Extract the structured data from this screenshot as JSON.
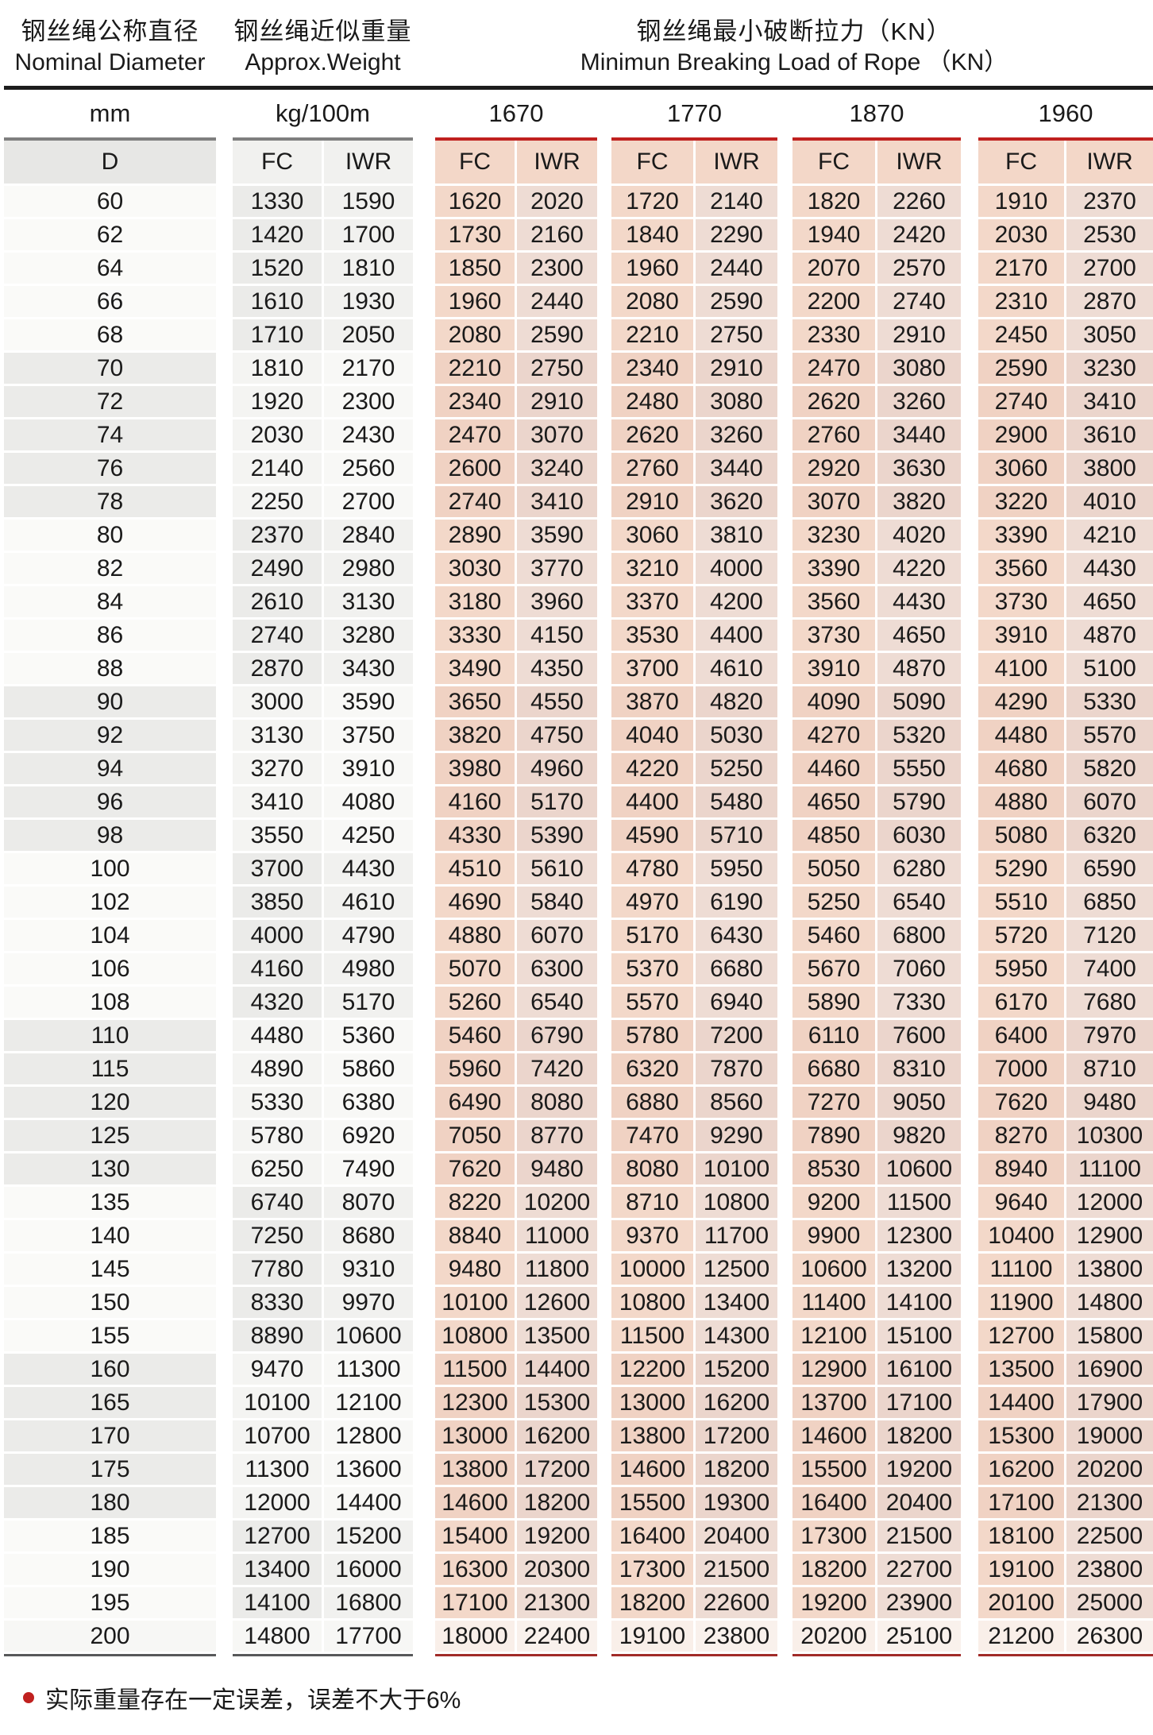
{
  "header": {
    "diameter_zh": "钢丝绳公称直径",
    "diameter_en": "Nominal Diameter",
    "weight_zh": "钢丝绳近似重量",
    "weight_en": "Approx.Weight",
    "load_zh": "钢丝绳最小破断拉力（KN）",
    "load_en": "Minimun Breaking Load of Rope （KN）"
  },
  "units": {
    "diameter": "mm",
    "weight": "kg/100m",
    "grades": [
      "1670",
      "1770",
      "1870",
      "1960"
    ]
  },
  "labels": {
    "diameter": "D",
    "fc": "FC",
    "iwr": "IWR"
  },
  "colors": {
    "accent_red": "#c0211f",
    "rule_dark_red": "#a12b28",
    "rule_gray": "#7f7f7f",
    "rule_dark": "#58595a",
    "rule_black": "#1d1d1d",
    "load_cell_pink": "#f3d8c9",
    "weight_cell_gray": "#ebebe9"
  },
  "footnote": "实际重量存在一定误差，误差不大于6%",
  "rows": [
    {
      "d": "60",
      "v": [
        "1330",
        "1590",
        "1620",
        "2020",
        "1720",
        "2140",
        "1820",
        "2260",
        "1910",
        "2370"
      ]
    },
    {
      "d": "62",
      "v": [
        "1420",
        "1700",
        "1730",
        "2160",
        "1840",
        "2290",
        "1940",
        "2420",
        "2030",
        "2530"
      ]
    },
    {
      "d": "64",
      "v": [
        "1520",
        "1810",
        "1850",
        "2300",
        "1960",
        "2440",
        "2070",
        "2570",
        "2170",
        "2700"
      ]
    },
    {
      "d": "66",
      "v": [
        "1610",
        "1930",
        "1960",
        "2440",
        "2080",
        "2590",
        "2200",
        "2740",
        "2310",
        "2870"
      ]
    },
    {
      "d": "68",
      "v": [
        "1710",
        "2050",
        "2080",
        "2590",
        "2210",
        "2750",
        "2330",
        "2910",
        "2450",
        "3050"
      ]
    },
    {
      "d": "70",
      "v": [
        "1810",
        "2170",
        "2210",
        "2750",
        "2340",
        "2910",
        "2470",
        "3080",
        "2590",
        "3230"
      ]
    },
    {
      "d": "72",
      "v": [
        "1920",
        "2300",
        "2340",
        "2910",
        "2480",
        "3080",
        "2620",
        "3260",
        "2740",
        "3410"
      ]
    },
    {
      "d": "74",
      "v": [
        "2030",
        "2430",
        "2470",
        "3070",
        "2620",
        "3260",
        "2760",
        "3440",
        "2900",
        "3610"
      ]
    },
    {
      "d": "76",
      "v": [
        "2140",
        "2560",
        "2600",
        "3240",
        "2760",
        "3440",
        "2920",
        "3630",
        "3060",
        "3800"
      ]
    },
    {
      "d": "78",
      "v": [
        "2250",
        "2700",
        "2740",
        "3410",
        "2910",
        "3620",
        "3070",
        "3820",
        "3220",
        "4010"
      ]
    },
    {
      "d": "80",
      "v": [
        "2370",
        "2840",
        "2890",
        "3590",
        "3060",
        "3810",
        "3230",
        "4020",
        "3390",
        "4210"
      ]
    },
    {
      "d": "82",
      "v": [
        "2490",
        "2980",
        "3030",
        "3770",
        "3210",
        "4000",
        "3390",
        "4220",
        "3560",
        "4430"
      ]
    },
    {
      "d": "84",
      "v": [
        "2610",
        "3130",
        "3180",
        "3960",
        "3370",
        "4200",
        "3560",
        "4430",
        "3730",
        "4650"
      ]
    },
    {
      "d": "86",
      "v": [
        "2740",
        "3280",
        "3330",
        "4150",
        "3530",
        "4400",
        "3730",
        "4650",
        "3910",
        "4870"
      ]
    },
    {
      "d": "88",
      "v": [
        "2870",
        "3430",
        "3490",
        "4350",
        "3700",
        "4610",
        "3910",
        "4870",
        "4100",
        "5100"
      ]
    },
    {
      "d": "90",
      "v": [
        "3000",
        "3590",
        "3650",
        "4550",
        "3870",
        "4820",
        "4090",
        "5090",
        "4290",
        "5330"
      ]
    },
    {
      "d": "92",
      "v": [
        "3130",
        "3750",
        "3820",
        "4750",
        "4040",
        "5030",
        "4270",
        "5320",
        "4480",
        "5570"
      ]
    },
    {
      "d": "94",
      "v": [
        "3270",
        "3910",
        "3980",
        "4960",
        "4220",
        "5250",
        "4460",
        "5550",
        "4680",
        "5820"
      ]
    },
    {
      "d": "96",
      "v": [
        "3410",
        "4080",
        "4160",
        "5170",
        "4400",
        "5480",
        "4650",
        "5790",
        "4880",
        "6070"
      ]
    },
    {
      "d": "98",
      "v": [
        "3550",
        "4250",
        "4330",
        "5390",
        "4590",
        "5710",
        "4850",
        "6030",
        "5080",
        "6320"
      ]
    },
    {
      "d": "100",
      "v": [
        "3700",
        "4430",
        "4510",
        "5610",
        "4780",
        "5950",
        "5050",
        "6280",
        "5290",
        "6590"
      ]
    },
    {
      "d": "102",
      "v": [
        "3850",
        "4610",
        "4690",
        "5840",
        "4970",
        "6190",
        "5250",
        "6540",
        "5510",
        "6850"
      ]
    },
    {
      "d": "104",
      "v": [
        "4000",
        "4790",
        "4880",
        "6070",
        "5170",
        "6430",
        "5460",
        "6800",
        "5720",
        "7120"
      ]
    },
    {
      "d": "106",
      "v": [
        "4160",
        "4980",
        "5070",
        "6300",
        "5370",
        "6680",
        "5670",
        "7060",
        "5950",
        "7400"
      ]
    },
    {
      "d": "108",
      "v": [
        "4320",
        "5170",
        "5260",
        "6540",
        "5570",
        "6940",
        "5890",
        "7330",
        "6170",
        "7680"
      ]
    },
    {
      "d": "110",
      "v": [
        "4480",
        "5360",
        "5460",
        "6790",
        "5780",
        "7200",
        "6110",
        "7600",
        "6400",
        "7970"
      ]
    },
    {
      "d": "115",
      "v": [
        "4890",
        "5860",
        "5960",
        "7420",
        "6320",
        "7870",
        "6680",
        "8310",
        "7000",
        "8710"
      ]
    },
    {
      "d": "120",
      "v": [
        "5330",
        "6380",
        "6490",
        "8080",
        "6880",
        "8560",
        "7270",
        "9050",
        "7620",
        "9480"
      ]
    },
    {
      "d": "125",
      "v": [
        "5780",
        "6920",
        "7050",
        "8770",
        "7470",
        "9290",
        "7890",
        "9820",
        "8270",
        "10300"
      ]
    },
    {
      "d": "130",
      "v": [
        "6250",
        "7490",
        "7620",
        "9480",
        "8080",
        "10100",
        "8530",
        "10600",
        "8940",
        "11100"
      ]
    },
    {
      "d": "135",
      "v": [
        "6740",
        "8070",
        "8220",
        "10200",
        "8710",
        "10800",
        "9200",
        "11500",
        "9640",
        "12000"
      ]
    },
    {
      "d": "140",
      "v": [
        "7250",
        "8680",
        "8840",
        "11000",
        "9370",
        "11700",
        "9900",
        "12300",
        "10400",
        "12900"
      ]
    },
    {
      "d": "145",
      "v": [
        "7780",
        "9310",
        "9480",
        "11800",
        "10000",
        "12500",
        "10600",
        "13200",
        "11100",
        "13800"
      ]
    },
    {
      "d": "150",
      "v": [
        "8330",
        "9970",
        "10100",
        "12600",
        "10800",
        "13400",
        "11400",
        "14100",
        "11900",
        "14800"
      ]
    },
    {
      "d": "155",
      "v": [
        "8890",
        "10600",
        "10800",
        "13500",
        "11500",
        "14300",
        "12100",
        "15100",
        "12700",
        "15800"
      ]
    },
    {
      "d": "160",
      "v": [
        "9470",
        "11300",
        "11500",
        "14400",
        "12200",
        "15200",
        "12900",
        "16100",
        "13500",
        "16900"
      ]
    },
    {
      "d": "165",
      "v": [
        "10100",
        "12100",
        "12300",
        "15300",
        "13000",
        "16200",
        "13700",
        "17100",
        "14400",
        "17900"
      ]
    },
    {
      "d": "170",
      "v": [
        "10700",
        "12800",
        "13000",
        "16200",
        "13800",
        "17200",
        "14600",
        "18200",
        "15300",
        "19000"
      ]
    },
    {
      "d": "175",
      "v": [
        "11300",
        "13600",
        "13800",
        "17200",
        "14600",
        "18200",
        "15500",
        "19200",
        "16200",
        "20200"
      ]
    },
    {
      "d": "180",
      "v": [
        "12000",
        "14400",
        "14600",
        "18200",
        "15500",
        "19300",
        "16400",
        "20400",
        "17100",
        "21300"
      ]
    },
    {
      "d": "185",
      "v": [
        "12700",
        "15200",
        "15400",
        "19200",
        "16400",
        "20400",
        "17300",
        "21500",
        "18100",
        "22500"
      ]
    },
    {
      "d": "190",
      "v": [
        "13400",
        "16000",
        "16300",
        "20300",
        "17300",
        "21500",
        "18200",
        "22700",
        "19100",
        "23800"
      ]
    },
    {
      "d": "195",
      "v": [
        "14100",
        "16800",
        "17100",
        "21300",
        "18200",
        "22600",
        "19200",
        "23900",
        "20100",
        "25000"
      ]
    },
    {
      "d": "200",
      "v": [
        "14800",
        "17700",
        "18000",
        "22400",
        "19100",
        "23800",
        "20200",
        "25100",
        "21200",
        "26300"
      ]
    }
  ]
}
